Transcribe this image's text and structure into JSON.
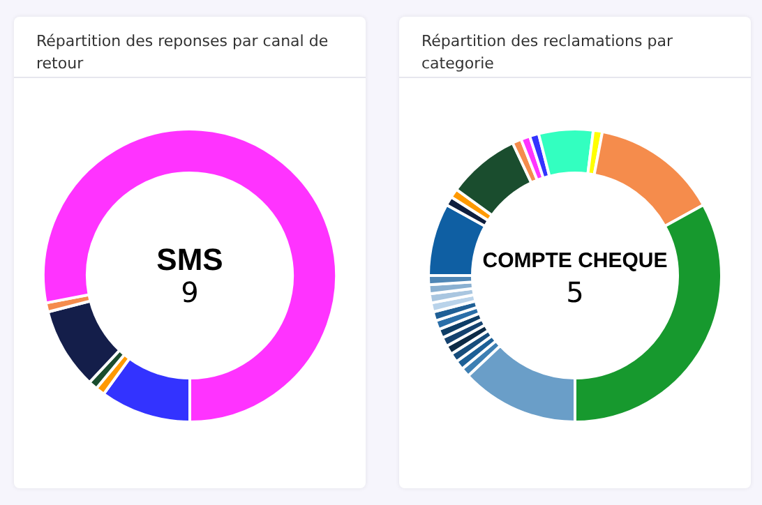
{
  "chart_data": [
    {
      "type": "donut",
      "title": "Répartition des reponses par canal de retour",
      "categories": [
        null,
        null,
        null,
        null,
        null,
        null
      ],
      "values": [
        10,
        1,
        1,
        9,
        1,
        78
      ],
      "colors": [
        "#3333ff",
        "#ff9900",
        "#1a4d2e",
        "#141e4a",
        "#f58c4c",
        "#ff33ff"
      ],
      "annotations": [
        "SMS",
        "9"
      ],
      "legend": false
    },
    {
      "type": "donut",
      "title": "Répartition des reclamations par categorie",
      "categories": [
        null,
        null,
        null,
        null,
        null,
        null,
        null,
        null,
        null,
        null,
        null,
        null,
        null,
        null,
        null,
        null,
        null,
        null,
        null,
        null,
        null,
        null,
        null,
        null
      ],
      "values": [
        13,
        1,
        1,
        1,
        1,
        1,
        1,
        1,
        1,
        1,
        1,
        1,
        1,
        8,
        1,
        1,
        8,
        1,
        1,
        1,
        6,
        1,
        14,
        33
      ],
      "colors": [
        "#6a9ec8",
        "#3d7fb3",
        "#1c5f96",
        "#174d7c",
        "#0d2a45",
        "#15426f",
        "#0e3d66",
        "#2a6ea8",
        "#1f5f95",
        "#b9d3ea",
        "#a9c6e0",
        "#8ab0d1",
        "#4f86b5",
        "#0f5fa3",
        "#0f1e3d",
        "#ff9900",
        "#1a4d2e",
        "#f58c4c",
        "#ff33ff",
        "#3333ff",
        "#33ffc0",
        "#ffff00",
        "#f58c4c",
        "#17992e"
      ],
      "annotations": [
        "COMPTE CHEQUE",
        "5"
      ],
      "legend": false
    }
  ]
}
